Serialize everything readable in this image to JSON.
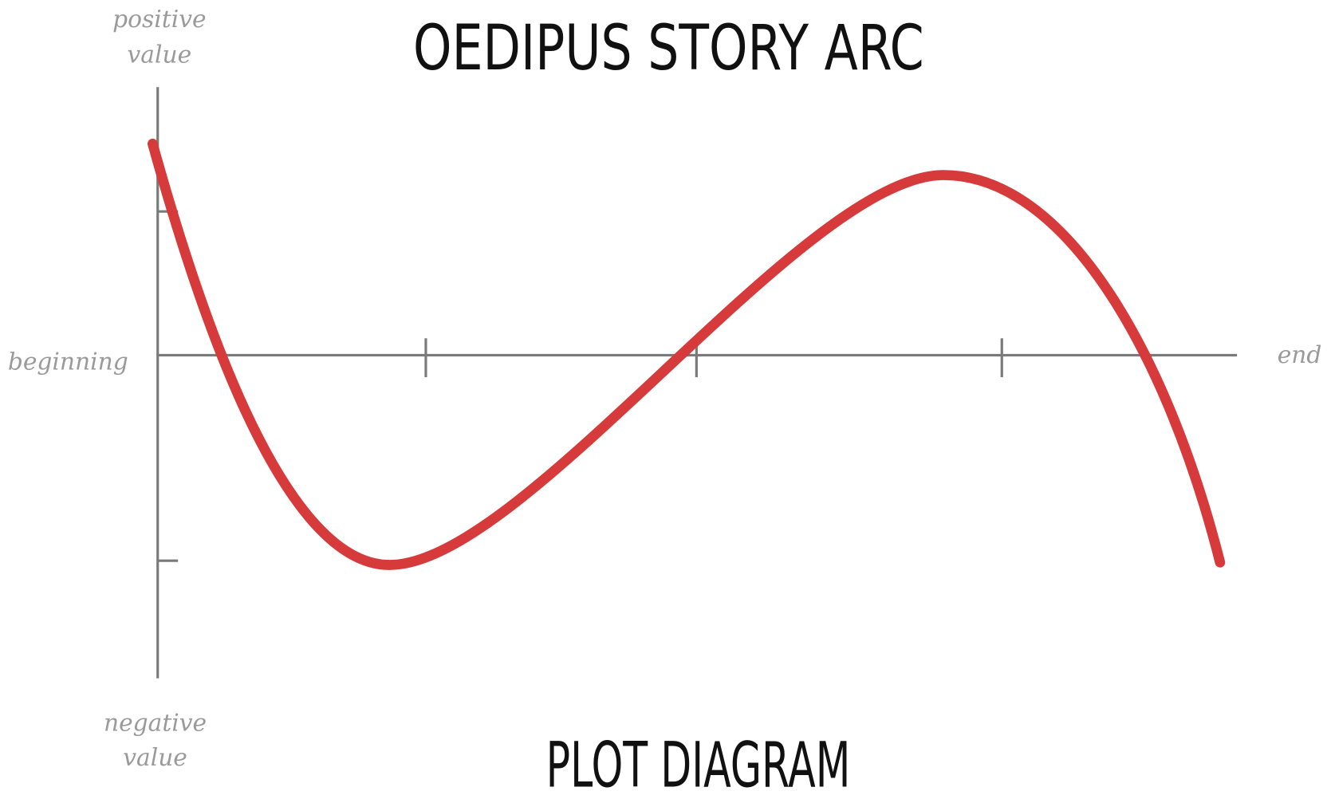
{
  "title": "OEDIPUS STORY ARC",
  "subtitle": "PLOT DIAGRAM",
  "axis_labels": {
    "top": [
      "positive",
      "value"
    ],
    "bottom": [
      "negative",
      "value"
    ],
    "left": "beginning",
    "right": "end"
  }
}
